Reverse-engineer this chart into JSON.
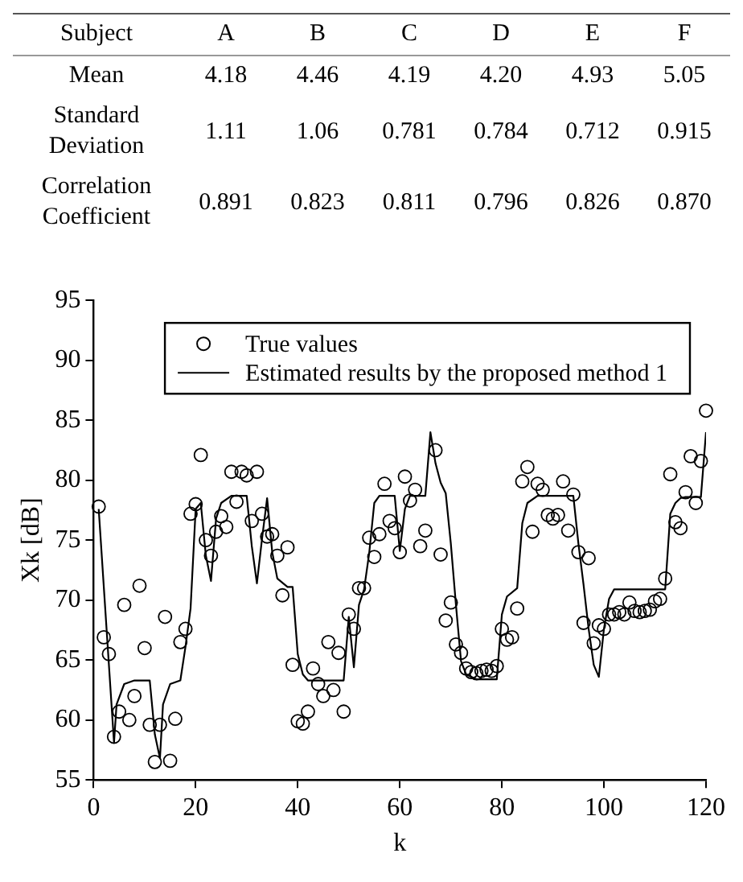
{
  "chart_data": [
    {
      "type": "heatmap",
      "ylabel": "Subject",
      "data_labels": true,
      "categories": [
        "A",
        "B",
        "C",
        "D",
        "E",
        "F"
      ],
      "y_categories": [
        "Mean",
        "Standard Deviation",
        "Correlation Coefficient"
      ],
      "cells": [
        [
          4.18,
          4.46,
          4.19,
          4.2,
          4.93,
          5.05
        ],
        [
          1.11,
          1.06,
          0.781,
          0.784,
          0.712,
          0.915
        ],
        [
          0.891,
          0.823,
          0.811,
          0.796,
          0.826,
          0.87
        ]
      ],
      "cell_labels": [
        [
          "4.18",
          "4.46",
          "4.19",
          "4.20",
          "4.93",
          "5.05"
        ],
        [
          "1.11",
          "1.06",
          "0.781",
          "0.784",
          "0.712",
          "0.915"
        ],
        [
          "0.891",
          "0.823",
          "0.811",
          "0.796",
          "0.826",
          "0.870"
        ]
      ]
    },
    {
      "type": "scatter",
      "xlabel": "k",
      "ylabel": "Xk [dB]",
      "xlim": [
        0,
        120
      ],
      "xticks": [
        0,
        20,
        40,
        60,
        80,
        100,
        120
      ],
      "ylim": [
        55,
        95
      ],
      "yticks": [
        55,
        60,
        65,
        70,
        75,
        80,
        85,
        90,
        95
      ],
      "grid": false,
      "legend": "top right",
      "series": [
        {
          "name": "True values",
          "type": "scatter",
          "marker": "circle",
          "color": "#000000",
          "x": [
            1,
            2,
            3,
            4,
            5,
            6,
            7,
            8,
            9,
            10,
            11,
            12,
            13,
            14,
            15,
            16,
            17,
            18,
            19,
            20,
            21,
            22,
            23,
            24,
            25,
            26,
            27,
            28,
            29,
            30,
            31,
            32,
            33,
            34,
            35,
            36,
            37,
            38,
            39,
            40,
            41,
            42,
            43,
            44,
            45,
            46,
            47,
            48,
            49,
            50,
            51,
            52,
            53,
            54,
            55,
            56,
            57,
            58,
            59,
            60,
            61,
            62,
            63,
            64,
            65,
            67,
            68,
            69,
            70,
            71,
            72,
            73,
            74,
            75,
            76,
            77,
            78,
            79,
            80,
            81,
            82,
            83,
            84,
            85,
            86,
            87,
            88,
            89,
            90,
            91,
            92,
            93,
            94,
            95,
            96,
            97,
            98,
            99,
            100,
            101,
            102,
            103,
            104,
            105,
            106,
            107,
            108,
            109,
            110,
            111,
            112,
            113,
            114,
            115,
            116,
            117,
            118,
            119,
            120
          ],
          "values": [
            77.8,
            66.9,
            65.5,
            58.6,
            60.7,
            69.6,
            60.0,
            62.0,
            71.2,
            66.0,
            59.6,
            56.5,
            59.6,
            68.6,
            56.6,
            60.1,
            66.5,
            67.6,
            77.2,
            78.0,
            82.1,
            75.0,
            73.7,
            75.7,
            77.0,
            76.1,
            80.7,
            78.2,
            80.7,
            80.4,
            76.6,
            80.7,
            77.2,
            75.3,
            75.5,
            73.7,
            70.4,
            74.4,
            64.6,
            59.9,
            59.7,
            60.7,
            64.3,
            63.0,
            62.0,
            66.5,
            62.5,
            65.6,
            60.7,
            68.8,
            67.6,
            71.0,
            71.0,
            75.2,
            73.6,
            75.5,
            79.7,
            76.6,
            76.0,
            74.0,
            80.3,
            78.3,
            79.2,
            74.5,
            75.8,
            82.5,
            73.8,
            68.3,
            69.8,
            66.3,
            65.6,
            64.3,
            64.0,
            63.9,
            64.1,
            64.2,
            64.1,
            64.5,
            67.6,
            66.7,
            66.9,
            69.3,
            79.9,
            81.1,
            75.7,
            79.7,
            79.2,
            77.1,
            76.8,
            77.1,
            79.9,
            75.8,
            78.8,
            74.0,
            68.1,
            73.5,
            66.4,
            67.9,
            67.6,
            68.8,
            68.8,
            69.0,
            68.8,
            69.8,
            69.1,
            69.0,
            69.1,
            69.2,
            69.9,
            70.1,
            71.8,
            80.5,
            76.5,
            76.0,
            79.0,
            82.0,
            78.1,
            81.6,
            85.8
          ]
        },
        {
          "name": "Estimated results by the proposed method 1",
          "type": "line",
          "marker": "none",
          "line_style": "solid",
          "color": "#000000",
          "x": [
            1,
            4,
            4.5,
            6,
            8,
            11,
            12,
            13,
            13.6,
            15,
            17,
            18,
            19,
            20,
            21,
            22,
            23,
            24,
            25,
            27,
            30,
            31,
            32,
            33,
            34,
            35,
            36,
            38,
            39,
            40,
            41,
            42,
            49,
            50,
            51,
            52,
            53,
            54,
            55,
            56,
            59,
            60,
            61,
            62,
            65,
            66,
            67,
            68,
            69,
            70,
            71,
            72,
            73,
            75,
            79,
            80,
            81,
            83,
            84,
            85,
            87,
            94,
            95,
            96,
            97,
            98,
            99,
            100,
            101,
            102,
            112,
            113,
            114,
            115,
            116,
            119,
            120
          ],
          "values": [
            77.6,
            58.1,
            61.3,
            63.0,
            63.3,
            63.3,
            58.8,
            56.8,
            61.3,
            63.0,
            63.3,
            66.1,
            69.3,
            77.6,
            78.1,
            73.7,
            71.6,
            76.8,
            78.1,
            78.7,
            78.7,
            74.5,
            71.4,
            75.1,
            78.5,
            74.0,
            71.8,
            71.1,
            71.1,
            65.5,
            63.8,
            63.3,
            63.3,
            68.6,
            64.4,
            69.6,
            70.9,
            73.9,
            78.1,
            78.7,
            78.7,
            74.1,
            77.6,
            78.7,
            78.7,
            84.0,
            81.4,
            79.8,
            78.9,
            74.7,
            69.6,
            64.9,
            63.8,
            63.4,
            63.4,
            68.8,
            70.3,
            71.0,
            76.4,
            78.1,
            78.7,
            78.7,
            74.7,
            71.3,
            67.6,
            64.6,
            63.6,
            67.6,
            70.1,
            70.9,
            70.9,
            77.2,
            78.1,
            78.5,
            78.6,
            78.6,
            84.0
          ]
        }
      ]
    }
  ]
}
